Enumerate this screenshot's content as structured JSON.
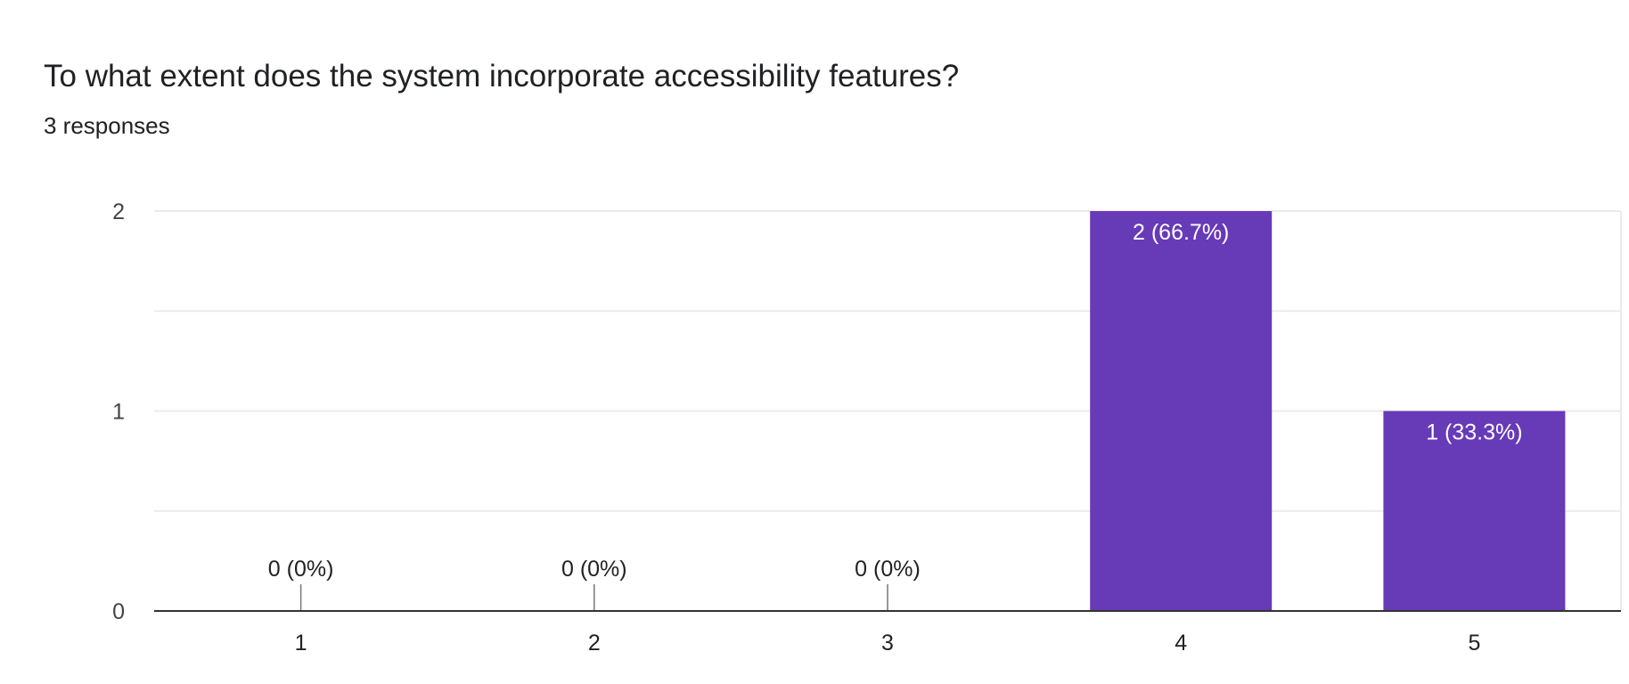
{
  "header": {
    "title": "To what extent does the system incorporate accessibility features?",
    "subtitle": "3 responses"
  },
  "chart_data": {
    "type": "bar",
    "title": "To what extent does the system incorporate accessibility features?",
    "subtitle": "3 responses",
    "categories": [
      "1",
      "2",
      "3",
      "4",
      "5"
    ],
    "values": [
      0,
      0,
      0,
      2,
      1
    ],
    "data_labels": [
      "0 (0%)",
      "0 (0%)",
      "0 (0%)",
      "2 (66.7%)",
      "1 (33.3%)"
    ],
    "yticks": [
      "0",
      "1",
      "2"
    ],
    "ylim": [
      0,
      2
    ],
    "xlabel": "",
    "ylabel": "",
    "grid": true,
    "bar_color": "#673ab7"
  }
}
